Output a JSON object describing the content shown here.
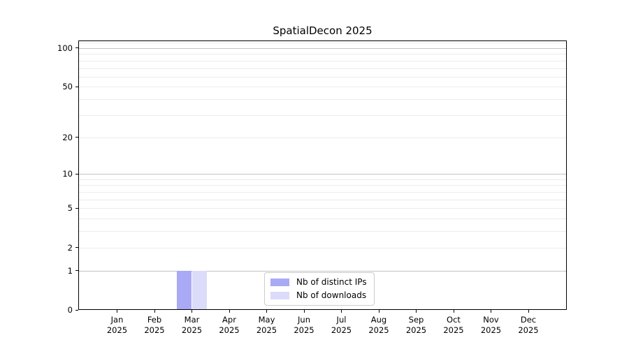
{
  "chart_data": {
    "type": "bar",
    "title": "SpatialDecon 2025",
    "xlabel": "",
    "ylabel": "",
    "categories": [
      "Jan 2025",
      "Feb 2025",
      "Mar 2025",
      "Apr 2025",
      "May 2025",
      "Jun 2025",
      "Jul 2025",
      "Aug 2025",
      "Sep 2025",
      "Oct 2025",
      "Nov 2025",
      "Dec 2025"
    ],
    "month_labels": [
      "Jan",
      "Feb",
      "Mar",
      "Apr",
      "May",
      "Jun",
      "Jul",
      "Aug",
      "Sep",
      "Oct",
      "Nov",
      "Dec"
    ],
    "year_label": "2025",
    "series": [
      {
        "name": "Nb of distinct IPs",
        "color": "#a9a9f6",
        "values": [
          0,
          0,
          1,
          0,
          0,
          0,
          0,
          0,
          0,
          0,
          0,
          0
        ]
      },
      {
        "name": "Nb of downloads",
        "color": "#dbdbfa",
        "values": [
          0,
          0,
          1,
          0,
          0,
          0,
          0,
          0,
          0,
          0,
          0,
          0
        ]
      }
    ],
    "yscale": "log1p",
    "ylim": [
      0,
      114.4
    ],
    "yticks": [
      0,
      1,
      2,
      5,
      10,
      20,
      50,
      100
    ],
    "grid_major": [
      1,
      10,
      100
    ],
    "grid_minor": [
      2,
      3,
      4,
      5,
      6,
      7,
      8,
      9,
      20,
      30,
      40,
      50,
      60,
      70,
      80,
      90,
      110
    ],
    "grid": true,
    "legend_position": "lower center"
  },
  "legend": {
    "items": [
      "Nb of distinct IPs",
      "Nb of downloads"
    ]
  }
}
